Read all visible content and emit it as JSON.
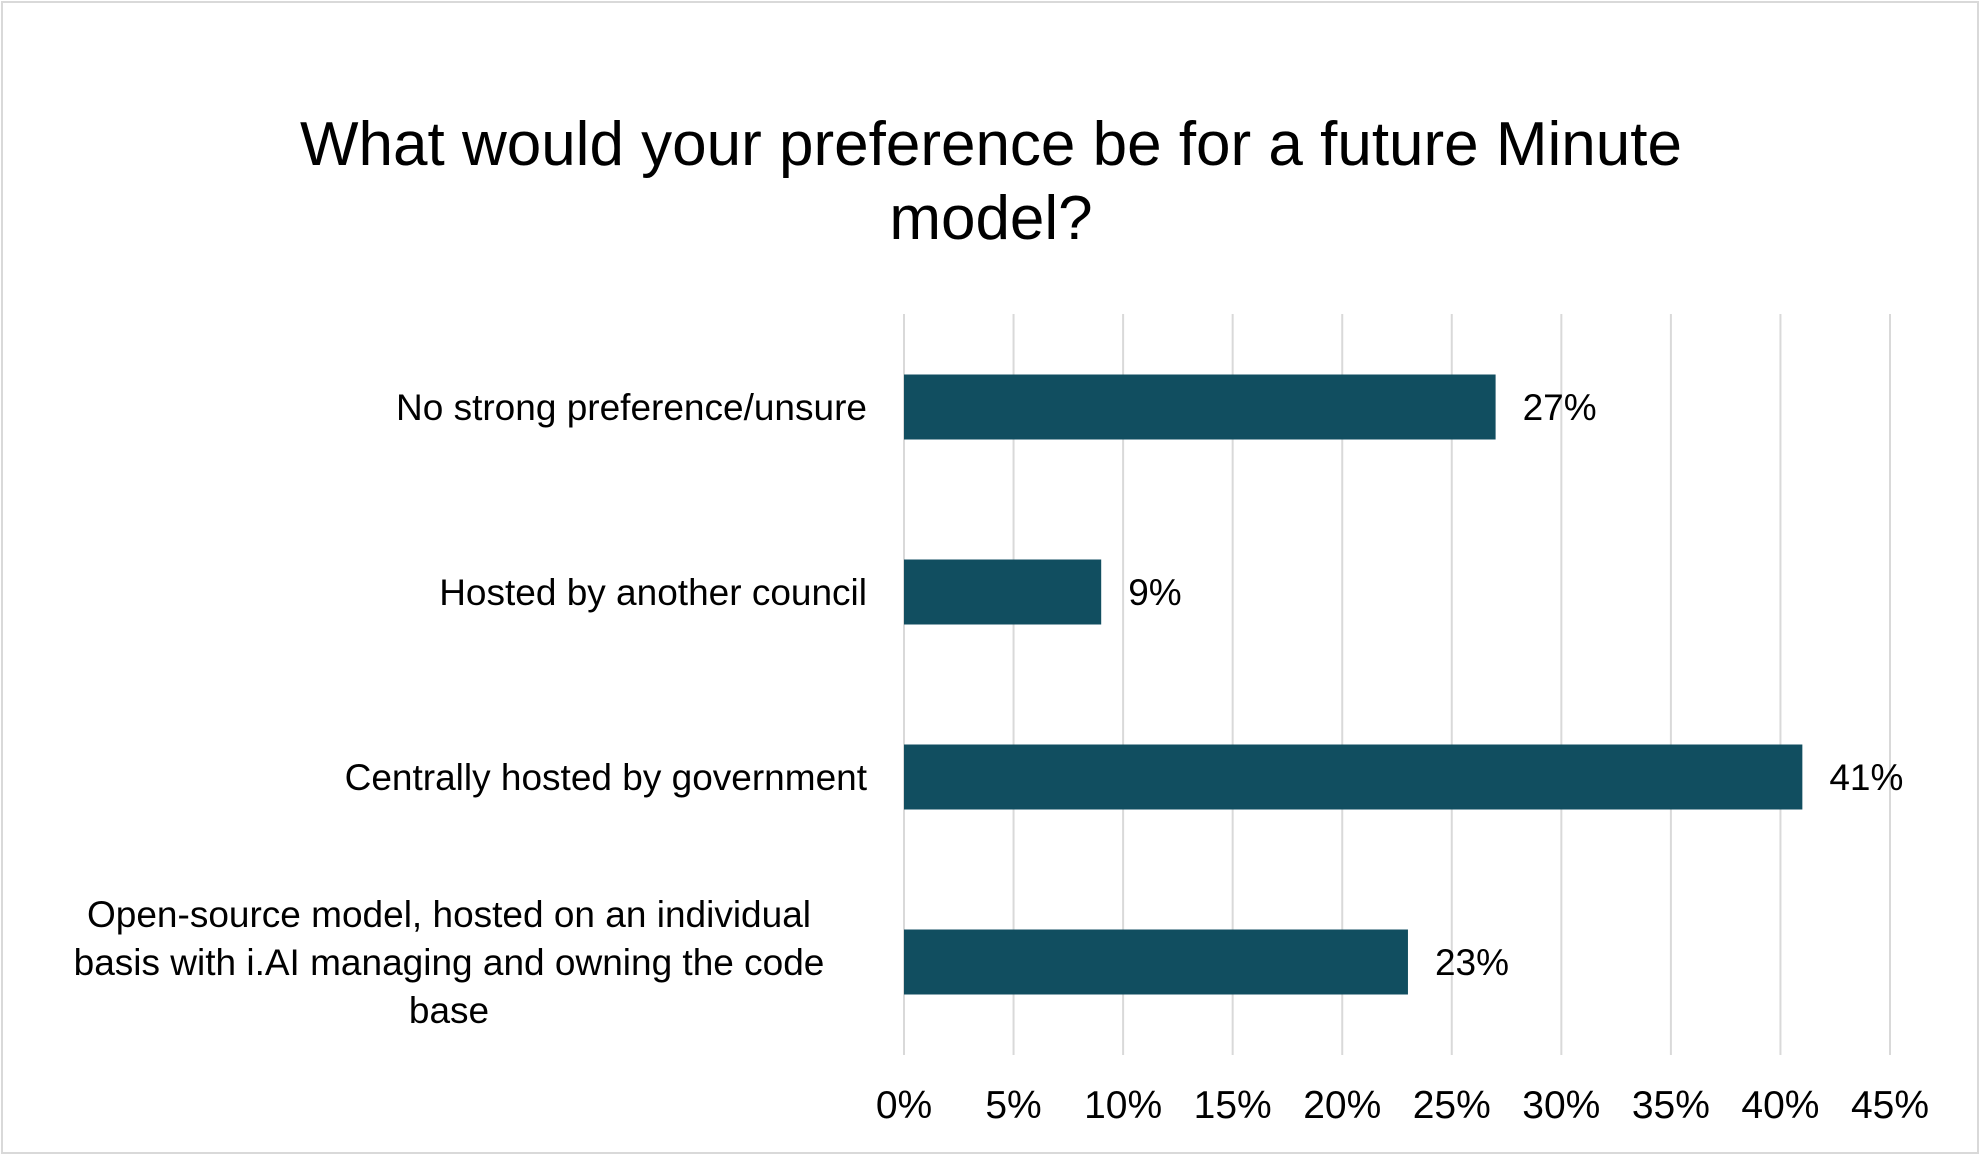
{
  "chart_data": {
    "type": "bar",
    "orientation": "horizontal",
    "title": "What would your preference be for a future Minute model?",
    "categories": [
      "No strong preference/unsure",
      "Hosted by another council",
      "Centrally hosted by government",
      "Open-source model, hosted on an individual basis with i.AI managing and owning the code base"
    ],
    "category_lines": [
      [
        "No strong preference/unsure"
      ],
      [
        "Hosted by another council"
      ],
      [
        "Centrally hosted by government"
      ],
      [
        "Open-source model, hosted on an individual",
        "basis with i.AI managing and owning the code",
        "base"
      ]
    ],
    "values": [
      27,
      9,
      41,
      23
    ],
    "data_labels": [
      "27%",
      "9%",
      "41%",
      "23%"
    ],
    "xlim": [
      0,
      45
    ],
    "xticks": [
      0,
      5,
      10,
      15,
      20,
      25,
      30,
      35,
      40,
      45
    ],
    "xtick_labels": [
      "0%",
      "5%",
      "10%",
      "15%",
      "20%",
      "25%",
      "30%",
      "35%",
      "40%",
      "45%"
    ],
    "xlabel": "",
    "ylabel": "",
    "grid": "vertical",
    "legend": "none",
    "colors": {
      "bar": "#114e60",
      "grid": "#d9d9d9",
      "text": "#000000",
      "border": "#d9d9d9"
    }
  }
}
